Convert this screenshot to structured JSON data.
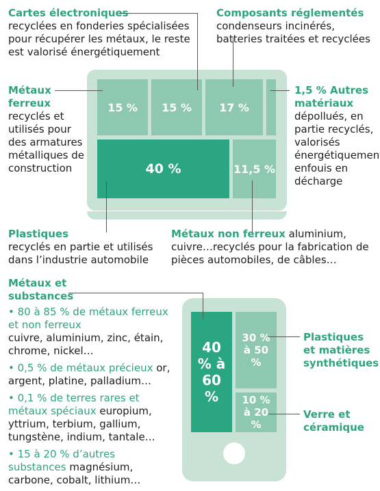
{
  "laptop": {
    "blocks": [
      {
        "label": "15 %"
      },
      {
        "label": "15 %"
      },
      {
        "label": "17 %"
      },
      {
        "label": "40 %"
      },
      {
        "label": "11,5 %"
      }
    ],
    "annotations": {
      "cartes": {
        "title": "Cartes électroniques",
        "text": "recyclées en fonderies spécialisées pour récupérer les métaux, le reste est valorisé énergétiquement"
      },
      "composants": {
        "title": "Composants réglementés",
        "text": "condenseurs incinérés, batteries traitées et recyclées"
      },
      "ferreux": {
        "title": "Métaux ferreux",
        "text": "recyclés et utilisés pour des armatures métalliques de construction"
      },
      "autres": {
        "title": "1,5 % Autres matériaux",
        "text": "dépollués, en partie recyclés, valorisés énergétiquement, enfouis en décharge"
      },
      "plastiques": {
        "title": "Plastiques",
        "text": "recyclés en partie et utilisés dans l’industrie automobile"
      },
      "non_ferreux": {
        "title": "Métaux non ferreux",
        "text": "aluminium, cuivre…recyclés pour la fabrication de pièces automobiles, de câbles…"
      }
    }
  },
  "phone": {
    "blocks": [
      {
        "label": "40 % à 60 %"
      },
      {
        "label": "30 % à 50 %"
      },
      {
        "label": "10 % à 20 %"
      }
    ],
    "annotations": {
      "metaux": {
        "title": "Métaux et substances"
      },
      "plastiques": {
        "title": "Plastiques et matières synthétiques"
      },
      "verre": {
        "title": "Verre et céramique"
      }
    },
    "bullets": [
      {
        "green": "• 80 à 85 % de métaux ferreux et non ferreux",
        "text": "cuivre, aluminium, zinc, étain, chrome, nickel…"
      },
      {
        "green": "• 0,5 % de métaux précieux",
        "text": "or, argent, platine, palladium…"
      },
      {
        "green": "• 0,1 % de terres rares et métaux spéciaux",
        "text": "europium, yttrium, terbium, gallium, tungstène, indium, tantale…"
      },
      {
        "green": "• 15 à 20 % d’autres substances",
        "text": "magnésium, carbone, cobalt, lithium…"
      }
    ]
  }
}
